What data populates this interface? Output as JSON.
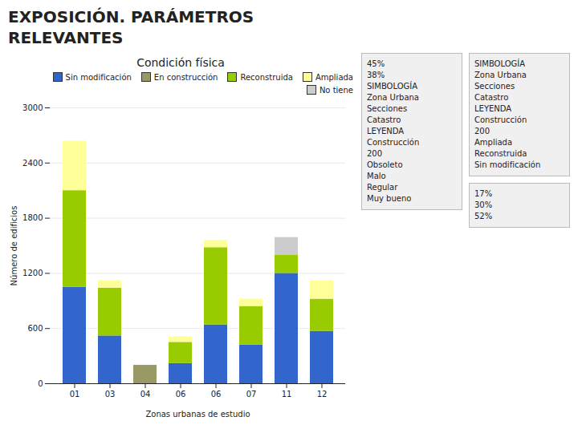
{
  "chart_data": {
    "type": "bar",
    "stacked": true,
    "title": "Condición física",
    "xlabel": "Zonas urbanas de estudio",
    "ylabel": "Número de edificios",
    "categories": [
      "01",
      "03",
      "04",
      "06",
      "06",
      "07",
      "11",
      "12"
    ],
    "series": [
      {
        "name": "Sin modificación",
        "color": "#3366cc",
        "values": [
          1050,
          520,
          0,
          220,
          640,
          420,
          1200,
          570
        ]
      },
      {
        "name": "En construcción",
        "color": "#999966",
        "values": [
          0,
          0,
          200,
          0,
          0,
          0,
          0,
          0
        ]
      },
      {
        "name": "Reconstruida",
        "color": "#99cc00",
        "values": [
          1050,
          520,
          0,
          230,
          840,
          420,
          200,
          350
        ]
      },
      {
        "name": "Ampliada",
        "color": "#ffff99",
        "values": [
          540,
          80,
          0,
          60,
          80,
          80,
          0,
          200
        ]
      },
      {
        "name": "No tiene",
        "color": "#cccccc",
        "values": [
          0,
          0,
          0,
          0,
          0,
          0,
          190,
          0
        ]
      }
    ],
    "ylim": [
      0,
      3000
    ],
    "yticks": [
      0,
      600,
      1200,
      1800,
      2400,
      3000
    ],
    "grid": true,
    "legend": "upper right",
    "annotations": [
      [
        "EXPOSICIÓN. PARÁMETROS",
        "RELEVANTES"
      ],
      [
        "45%",
        "38%",
        "SIMBOLOGÍA",
        "Zona Urbana",
        "Secciones",
        "Catastro",
        "LEYENDA",
        "Construcción",
        "200",
        "Obsoleto",
        "Malo",
        "Regular",
        "Muy bueno"
      ],
      [
        "SIMBOLOGÍA",
        "Zona Urbana",
        "Secciones",
        "Catastro",
        "LEYENDA",
        "Construcción",
        "200",
        "Ampliada",
        "Reconstruida",
        "Sin modificación"
      ],
      [
        "17%",
        "30%",
        "52%"
      ]
    ]
  }
}
